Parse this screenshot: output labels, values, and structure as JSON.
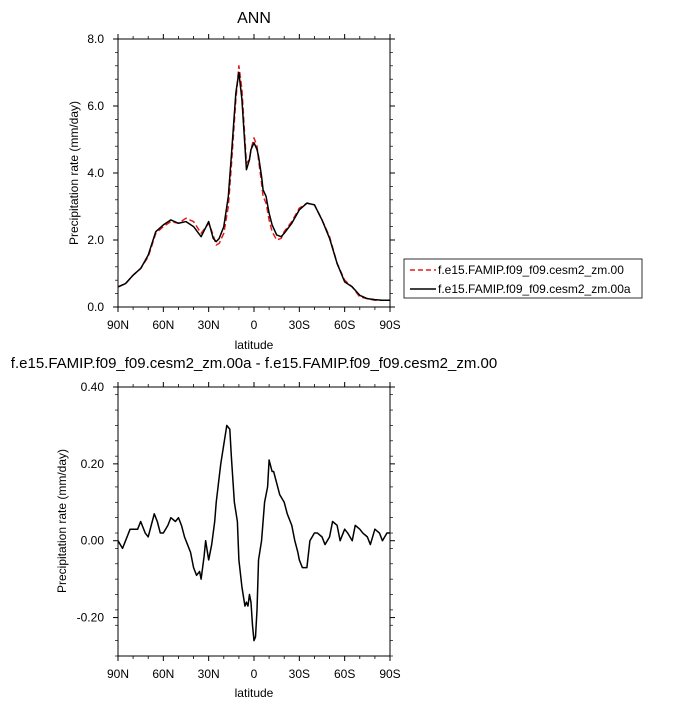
{
  "chart_data": [
    {
      "type": "line",
      "title": "ANN",
      "xlabel": "latitude",
      "ylabel": "Precipitation rate (mm/day)",
      "xlim": [
        90,
        -90
      ],
      "ylim": [
        0,
        8
      ],
      "xticks": [
        90,
        60,
        30,
        0,
        -30,
        -60,
        -90
      ],
      "xtick_labels": [
        "90N",
        "60N",
        "30N",
        "0",
        "30S",
        "60S",
        "90S"
      ],
      "yticks": [
        0,
        2,
        4,
        6,
        8
      ],
      "ytick_labels": [
        "0.0",
        "2.0",
        "4.0",
        "6.0",
        "8.0"
      ],
      "legend_position": "right",
      "series": [
        {
          "name": "f.e15.FAMIP.f09_f09.cesm2_zm.00",
          "color": "#e41a1c",
          "dash": "dashed",
          "x": [
            90,
            85,
            80,
            75,
            70,
            65,
            60,
            55,
            50,
            45,
            40,
            35,
            30,
            27,
            25,
            23,
            20,
            17,
            15,
            12,
            10,
            8,
            6,
            5,
            3,
            2,
            0,
            -2,
            -3,
            -5,
            -6,
            -8,
            -10,
            -12,
            -15,
            -18,
            -20,
            -25,
            -30,
            -35,
            -40,
            -45,
            -50,
            -55,
            -60,
            -65,
            -70,
            -75,
            -80,
            -85,
            -90
          ],
          "y": [
            0.6,
            0.7,
            0.95,
            1.15,
            1.5,
            2.2,
            2.4,
            2.55,
            2.5,
            2.65,
            2.55,
            2.2,
            2.5,
            2.15,
            1.85,
            1.9,
            2.2,
            3.0,
            4.2,
            6.2,
            7.2,
            6.5,
            5.0,
            4.3,
            4.4,
            4.7,
            5.05,
            4.8,
            4.4,
            3.7,
            3.3,
            3.1,
            2.6,
            2.25,
            2.0,
            2.05,
            2.25,
            2.55,
            2.95,
            3.1,
            3.05,
            2.6,
            2.1,
            1.3,
            0.8,
            0.6,
            0.3,
            0.25,
            0.2,
            0.2,
            0.2
          ]
        },
        {
          "name": "f.e15.FAMIP.f09_f09.cesm2_zm.00a",
          "color": "#000000",
          "dash": "solid",
          "x": [
            90,
            85,
            80,
            75,
            70,
            65,
            60,
            55,
            50,
            45,
            40,
            35,
            30,
            27,
            25,
            23,
            20,
            17,
            15,
            12,
            10,
            8,
            6,
            5,
            3,
            2,
            0,
            -2,
            -3,
            -5,
            -6,
            -8,
            -10,
            -12,
            -15,
            -18,
            -20,
            -25,
            -30,
            -35,
            -40,
            -45,
            -50,
            -55,
            -60,
            -65,
            -70,
            -75,
            -80,
            -85,
            -90
          ],
          "y": [
            0.6,
            0.7,
            0.95,
            1.15,
            1.55,
            2.25,
            2.45,
            2.6,
            2.5,
            2.55,
            2.4,
            2.1,
            2.55,
            2.05,
            1.95,
            2.05,
            2.4,
            3.3,
            4.5,
            6.4,
            7.0,
            6.2,
            4.8,
            4.1,
            4.4,
            4.7,
            4.9,
            4.7,
            4.5,
            3.9,
            3.5,
            3.3,
            2.8,
            2.45,
            2.15,
            2.1,
            2.2,
            2.5,
            2.9,
            3.1,
            3.05,
            2.6,
            2.05,
            1.3,
            0.75,
            0.6,
            0.35,
            0.25,
            0.22,
            0.2,
            0.2
          ]
        }
      ]
    },
    {
      "type": "line",
      "title": "f.e15.FAMIP.f09_f09.cesm2_zm.00a - f.e15.FAMIP.f09_f09.cesm2_zm.00",
      "xlabel": "latitude",
      "ylabel": "Precipitation rate (mm/day)",
      "xlim": [
        90,
        -90
      ],
      "ylim": [
        -0.3,
        0.4
      ],
      "xticks": [
        90,
        60,
        30,
        0,
        -30,
        -60,
        -90
      ],
      "xtick_labels": [
        "90N",
        "60N",
        "30N",
        "0",
        "30S",
        "60S",
        "90S"
      ],
      "yticks": [
        -0.2,
        0,
        0.2,
        0.4
      ],
      "ytick_labels": [
        "-0.20",
        "0.00",
        "0.20",
        "0.40"
      ],
      "series": [
        {
          "color": "#000000",
          "dash": "solid",
          "x": [
            90,
            87,
            85,
            82,
            80,
            77,
            75,
            72,
            70,
            68,
            66,
            64,
            62,
            60,
            57,
            55,
            52,
            50,
            48,
            46,
            44,
            42,
            40,
            38,
            36,
            35,
            33,
            32,
            30,
            28,
            26,
            25,
            22,
            20,
            18,
            16,
            15,
            13,
            11,
            10,
            8,
            6,
            5,
            4,
            3,
            2,
            1,
            0,
            -1,
            -2,
            -3,
            -5,
            -7,
            -9,
            -10,
            -12,
            -13,
            -15,
            -17,
            -20,
            -22,
            -25,
            -27,
            -29,
            -30,
            -32,
            -35,
            -37,
            -40,
            -42,
            -45,
            -47,
            -50,
            -52,
            -55,
            -57,
            -60,
            -62,
            -65,
            -67,
            -70,
            -72,
            -75,
            -77,
            -80,
            -83,
            -85,
            -88,
            -90
          ],
          "y": [
            0.0,
            -0.02,
            0.0,
            0.03,
            0.03,
            0.03,
            0.05,
            0.02,
            0.01,
            0.04,
            0.07,
            0.05,
            0.02,
            0.02,
            0.04,
            0.06,
            0.05,
            0.06,
            0.04,
            0.01,
            -0.01,
            -0.03,
            -0.07,
            -0.09,
            -0.08,
            -0.1,
            -0.04,
            0.0,
            -0.05,
            -0.01,
            0.05,
            0.1,
            0.2,
            0.25,
            0.3,
            0.29,
            0.22,
            0.1,
            0.05,
            -0.05,
            -0.12,
            -0.17,
            -0.16,
            -0.17,
            -0.14,
            -0.16,
            -0.22,
            -0.26,
            -0.25,
            -0.18,
            -0.05,
            0.0,
            0.1,
            0.14,
            0.21,
            0.18,
            0.18,
            0.15,
            0.12,
            0.1,
            0.07,
            0.04,
            0.0,
            -0.03,
            -0.05,
            -0.07,
            -0.07,
            0.0,
            0.02,
            0.02,
            0.01,
            -0.01,
            0.01,
            0.05,
            0.04,
            0.0,
            0.03,
            0.02,
            0.0,
            0.04,
            0.03,
            0.02,
            0.01,
            -0.01,
            0.03,
            0.02,
            0.0,
            0.02,
            0.02
          ]
        }
      ]
    }
  ]
}
